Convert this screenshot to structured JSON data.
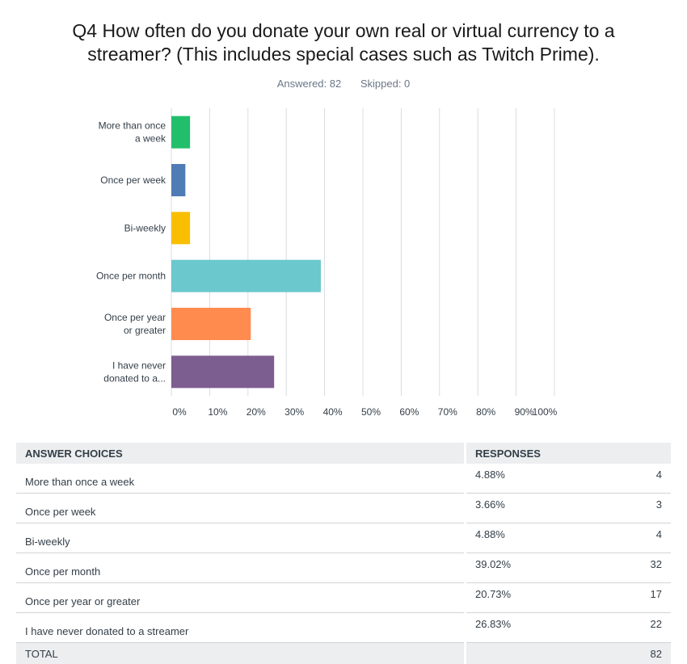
{
  "title": "Q4 How often do you donate your own real or virtual currency to a streamer? (This includes special cases such as Twitch Prime).",
  "answered_label": "Answered: 82",
  "skipped_label": "Skipped: 0",
  "colors": {
    "series": [
      "#21bf6b",
      "#507cb6",
      "#f9be00",
      "#6bc8cd",
      "#ff8b4f",
      "#7d5e90"
    ],
    "grid": "#d9dde0",
    "axis_text": "#333e48"
  },
  "chart_data": {
    "type": "bar",
    "orientation": "horizontal",
    "categories": [
      [
        "More than once",
        "a week"
      ],
      [
        "Once per week"
      ],
      [
        "Bi-weekly"
      ],
      [
        "Once per month"
      ],
      [
        "Once per year",
        "or greater"
      ],
      [
        "I have never",
        "donated to a..."
      ]
    ],
    "values": [
      4.88,
      3.66,
      4.88,
      39.02,
      20.73,
      26.83
    ],
    "xlim": [
      0,
      100
    ],
    "x_ticks": [
      "0%",
      "10%",
      "20%",
      "30%",
      "40%",
      "50%",
      "60%",
      "70%",
      "80%",
      "90%",
      "100%"
    ],
    "grid": true
  },
  "table": {
    "headers": {
      "choice": "ANSWER CHOICES",
      "responses": "RESPONSES"
    },
    "rows": [
      {
        "choice": "More than once a week",
        "pct": "4.88%",
        "count": "4"
      },
      {
        "choice": "Once per week",
        "pct": "3.66%",
        "count": "3"
      },
      {
        "choice": "Bi-weekly",
        "pct": "4.88%",
        "count": "4"
      },
      {
        "choice": "Once per month",
        "pct": "39.02%",
        "count": "32"
      },
      {
        "choice": "Once per year or greater",
        "pct": "20.73%",
        "count": "17"
      },
      {
        "choice": "I have never donated to a streamer",
        "pct": "26.83%",
        "count": "22"
      }
    ],
    "total": {
      "label": "TOTAL",
      "count": "82"
    }
  }
}
